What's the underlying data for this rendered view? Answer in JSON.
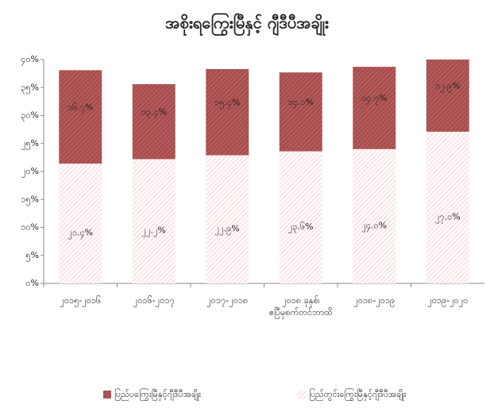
{
  "chart_data": {
    "type": "stacked_bar",
    "title": "အစိုးရကြွေးမြီနှင့် ဂျီဒီပီအချိုး",
    "categories": [
      "၂၀၁၅-၂၀၁၆",
      "၂၀၁၆-၂၀၁၇",
      "၂၀၁၇-၂၀၁၈",
      "၂၀၁၈ ခုနှစ်၊ ဧပြီမှစက်တင်ဘာထိ",
      "၂၀၁၈-၂၀၁၉",
      "၂၀၁၉-၂၀၂၀"
    ],
    "series": [
      {
        "name": "ပြည်တွင်းကြွေးမြီနှင့်ဂျီဒီပီအချိုး",
        "color": "#f9dede",
        "values": [
          21.4,
          22.2,
          22.9,
          23.6,
          24.0,
          27.1
        ],
        "value_labels": [
          "၂၁.၄%",
          "၂၂.၂%",
          "၂၂.၉%",
          "၂၃.၆%",
          "၂၄.၀%",
          "၂၇.၁%"
        ]
      },
      {
        "name": "ပြည်ပကြွေးမြီနှင့်ဂျီဒီပီအချိုး",
        "color": "#a84c4c",
        "values": [
          16.7,
          13.4,
          15.4,
          14.1,
          14.7,
          12.9
        ],
        "value_labels": [
          "၁၆.၇%",
          "၁၃.၄%",
          "၁၅.၄%",
          "၁၄.၁%",
          "၁၄.၇%",
          "၁၂.၉%"
        ]
      }
    ],
    "ylim": [
      0,
      40
    ],
    "yticks": [
      {
        "value": 0,
        "label": "၀%"
      },
      {
        "value": 5,
        "label": "၅%"
      },
      {
        "value": 10,
        "label": "၁၀%"
      },
      {
        "value": 15,
        "label": "၁၅%"
      },
      {
        "value": 20,
        "label": "၂၀%"
      },
      {
        "value": 25,
        "label": "၂၅%"
      },
      {
        "value": 30,
        "label": "၃၀%"
      },
      {
        "value": 35,
        "label": "၃၅%"
      },
      {
        "value": 40,
        "label": "၄၀%"
      }
    ],
    "legend": "bottom"
  }
}
